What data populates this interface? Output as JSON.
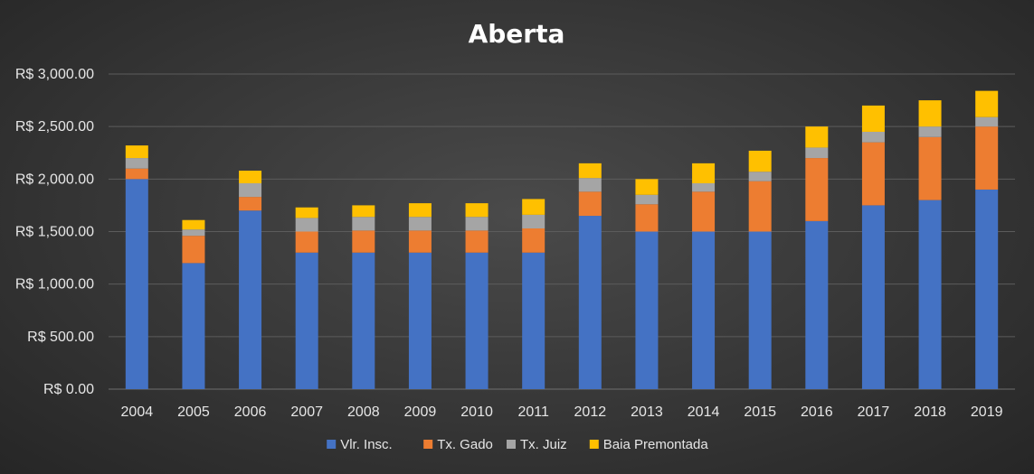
{
  "chart_data": {
    "type": "bar",
    "stacked": true,
    "title": "Aberta",
    "xlabel": "",
    "ylabel": "",
    "categories": [
      "2004",
      "2005",
      "2006",
      "2007",
      "2008",
      "2009",
      "2010",
      "2011",
      "2012",
      "2013",
      "2014",
      "2015",
      "2016",
      "2017",
      "2018",
      "2019"
    ],
    "series": [
      {
        "name": "Vlr. Insc.",
        "color": "#4472C4",
        "values": [
          2000,
          1200,
          1700,
          1300,
          1300,
          1300,
          1300,
          1300,
          1650,
          1500,
          1500,
          1500,
          1600,
          1750,
          1800,
          1900
        ]
      },
      {
        "name": "Tx. Gado",
        "color": "#ED7D31",
        "values": [
          100,
          260,
          130,
          200,
          210,
          210,
          210,
          230,
          230,
          260,
          380,
          480,
          600,
          600,
          600,
          600
        ]
      },
      {
        "name": "Tx. Juiz",
        "color": "#A5A5A5",
        "values": [
          100,
          60,
          130,
          130,
          130,
          130,
          130,
          130,
          130,
          90,
          80,
          90,
          100,
          100,
          100,
          90
        ]
      },
      {
        "name": "Baia Premontada",
        "color": "#FFC000",
        "values": [
          120,
          90,
          120,
          100,
          110,
          130,
          130,
          150,
          140,
          150,
          190,
          200,
          200,
          250,
          250,
          250
        ]
      }
    ],
    "ylim": [
      0,
      3000
    ],
    "yticks": [
      0,
      500,
      1000,
      1500,
      2000,
      2500,
      3000
    ],
    "ytick_labels": [
      "R$ 0.00",
      "R$ 500.00",
      "R$ 1,000.00",
      "R$ 1,500.00",
      "R$ 2,000.00",
      "R$ 2,500.00",
      "R$ 3,000.00"
    ],
    "grid": true,
    "legend_position": "bottom"
  }
}
